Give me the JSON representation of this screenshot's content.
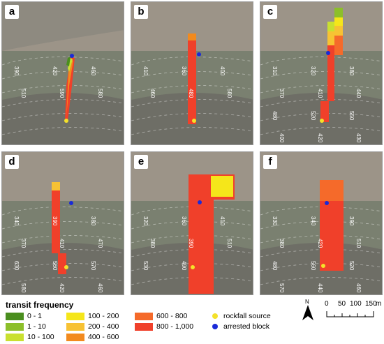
{
  "panels": [
    {
      "letter": "a",
      "contours": [
        "390",
        "420",
        "460",
        "510",
        "590",
        "580"
      ]
    },
    {
      "letter": "b",
      "contours": [
        "410",
        "360",
        "400",
        "460",
        "480",
        "580"
      ]
    },
    {
      "letter": "c",
      "contours": [
        "310",
        "320",
        "380",
        "370",
        "410",
        "440",
        "480",
        "520",
        "550",
        "400",
        "420",
        "430"
      ]
    },
    {
      "letter": "d",
      "contours": [
        "340",
        "390",
        "380",
        "370",
        "410",
        "470",
        "630",
        "560",
        "570",
        "580",
        "420",
        "460"
      ]
    },
    {
      "letter": "e",
      "contours": [
        "320",
        "360",
        "410",
        "380",
        "390",
        "510",
        "530",
        "490"
      ]
    },
    {
      "letter": "f",
      "contours": [
        "330",
        "340",
        "390",
        "380",
        "420",
        "510",
        "480",
        "560",
        "520",
        "570",
        "440",
        "460"
      ]
    }
  ],
  "legend": {
    "title": "transit frequency",
    "items": [
      {
        "label": "0 - 1",
        "color": "#4a8e1e"
      },
      {
        "label": "1 - 10",
        "color": "#8cbf2a"
      },
      {
        "label": "10 - 100",
        "color": "#c9e030"
      },
      {
        "label": "100 - 200",
        "color": "#f5e61a"
      },
      {
        "label": "200 - 400",
        "color": "#f7c233"
      },
      {
        "label": "400 - 600",
        "color": "#f28a1e"
      },
      {
        "label": "600 - 800",
        "color": "#f56a2a"
      },
      {
        "label": "800 - 1,000",
        "color": "#f0402a"
      }
    ],
    "markers": [
      {
        "label": "rockfall source",
        "color": "#f4e12a"
      },
      {
        "label": "arrested block",
        "color": "#1a2ad8"
      }
    ]
  },
  "north": {
    "label": "N"
  },
  "scale": {
    "ticks": [
      "0",
      "50",
      "100",
      "150"
    ],
    "unit": "m"
  }
}
